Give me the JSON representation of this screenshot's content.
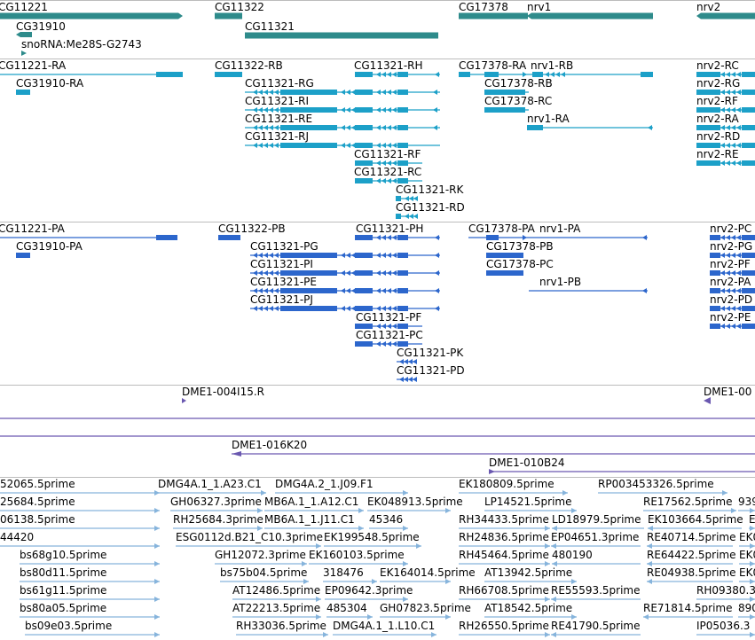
{
  "colors": {
    "gene": "#2e8b8b",
    "transcript": "#1ca0c8",
    "protein": "#2c66cc",
    "bac": "#6a58b0",
    "est": "#86b4dc",
    "divider": "#bcbcbc"
  },
  "tracks": {
    "genes": [
      {
        "label": "CG11221",
        "dir": "-"
      },
      {
        "label": "CG31910",
        "dir": "-"
      },
      {
        "label": "snoRNA:Me28S-G2743",
        "dir": "+"
      },
      {
        "label": "CG11322",
        "dir": "+"
      },
      {
        "label": "CG11321",
        "dir": "-"
      },
      {
        "label": "CG17378",
        "dir": "+"
      },
      {
        "label": "nrv1",
        "dir": "-"
      },
      {
        "label": "nrv2",
        "dir": "-"
      }
    ],
    "transcripts": [
      {
        "label": "CG11221-RA"
      },
      {
        "label": "CG31910-RA"
      },
      {
        "label": "CG11322-RB"
      },
      {
        "label": "CG11321-RG"
      },
      {
        "label": "CG11321-RI"
      },
      {
        "label": "CG11321-RE"
      },
      {
        "label": "CG11321-RJ"
      },
      {
        "label": "CG11321-RH"
      },
      {
        "label": "CG11321-RF"
      },
      {
        "label": "CG11321-RC"
      },
      {
        "label": "CG11321-RK"
      },
      {
        "label": "CG11321-RD"
      },
      {
        "label": "CG17378-RA"
      },
      {
        "label": "CG17378-RB"
      },
      {
        "label": "CG17378-RC"
      },
      {
        "label": "nrv1-RB"
      },
      {
        "label": "nrv1-RA"
      },
      {
        "label": "nrv2-RC"
      },
      {
        "label": "nrv2-RG"
      },
      {
        "label": "nrv2-RF"
      },
      {
        "label": "nrv2-RA"
      },
      {
        "label": "nrv2-RD"
      },
      {
        "label": "nrv2-RE"
      }
    ],
    "proteins": [
      {
        "label": "CG11221-PA"
      },
      {
        "label": "CG31910-PA"
      },
      {
        "label": "CG11322-PB"
      },
      {
        "label": "CG11321-PG"
      },
      {
        "label": "CG11321-PI"
      },
      {
        "label": "CG11321-PE"
      },
      {
        "label": "CG11321-PJ"
      },
      {
        "label": "CG11321-PH"
      },
      {
        "label": "CG11321-PF"
      },
      {
        "label": "CG11321-PC"
      },
      {
        "label": "CG11321-PK"
      },
      {
        "label": "CG11321-PD"
      },
      {
        "label": "CG17378-PA"
      },
      {
        "label": "CG17378-PB"
      },
      {
        "label": "CG17378-PC"
      },
      {
        "label": "nrv1-PA"
      },
      {
        "label": "nrv1-PB"
      },
      {
        "label": "nrv2-PC"
      },
      {
        "label": "nrv2-PG"
      },
      {
        "label": "nrv2-PF"
      },
      {
        "label": "nrv2-PA"
      },
      {
        "label": "nrv2-PD"
      },
      {
        "label": "nrv2-PE"
      }
    ],
    "bacs": [
      {
        "label": "DME1-004I15.R"
      },
      {
        "label": "DME1-00"
      },
      {
        "label": "DME1-016K20"
      },
      {
        "label": "DME1-010B24"
      }
    ],
    "ests": [
      {
        "label": "52065.5prime"
      },
      {
        "label": "25684.5prime"
      },
      {
        "label": "06138.5prime"
      },
      {
        "label": "44420"
      },
      {
        "label": "bs68g10.5prime"
      },
      {
        "label": "bs80d11.5prime"
      },
      {
        "label": "bs61g11.5prime"
      },
      {
        "label": "bs80a05.5prime"
      },
      {
        "label": "bs09e03.5prime"
      },
      {
        "label": "DMG4A.1_1.A23.C1"
      },
      {
        "label": "DMG4A.2_1.J09.F1"
      },
      {
        "label": "GH06327.3prime"
      },
      {
        "label": "MB6A.1_1.A12.C1"
      },
      {
        "label": "EK048913.5prime"
      },
      {
        "label": "RH25684.3prime"
      },
      {
        "label": "MB6A.1_1.J11.C1"
      },
      {
        "label": "45346"
      },
      {
        "label": "ESG0112d.B21_C10.3prime"
      },
      {
        "label": "EK199548.5prime"
      },
      {
        "label": "GH12072.3prime"
      },
      {
        "label": "EK160103.5prime"
      },
      {
        "label": "bs75b04.5prime"
      },
      {
        "label": "318476"
      },
      {
        "label": "EK164014.5prime"
      },
      {
        "label": "AT12486.5prime"
      },
      {
        "label": "EP09642.3prime"
      },
      {
        "label": "AT22213.5prime"
      },
      {
        "label": "485304"
      },
      {
        "label": "GH07823.5prime"
      },
      {
        "label": "RH33036.5prime"
      },
      {
        "label": "DMG4A.1_1.L10.C1"
      },
      {
        "label": "EK180809.5prime"
      },
      {
        "label": "RP003453326.5prime"
      },
      {
        "label": "LP14521.5prime"
      },
      {
        "label": "RE17562.5prime"
      },
      {
        "label": "939"
      },
      {
        "label": "RH34433.5prime"
      },
      {
        "label": "LD18979.5prime"
      },
      {
        "label": "EK103664.5prime"
      },
      {
        "label": "E"
      },
      {
        "label": "RH24836.5prime"
      },
      {
        "label": "EP04651.3prime"
      },
      {
        "label": "RE40714.5prime"
      },
      {
        "label": "EK0"
      },
      {
        "label": "RH45464.5prime"
      },
      {
        "label": "480190"
      },
      {
        "label": "RE64422.5prime"
      },
      {
        "label": "EK0"
      },
      {
        "label": "AT13942.5prime"
      },
      {
        "label": "RE04938.5prime"
      },
      {
        "label": "EK0"
      },
      {
        "label": "RH66708.5prime"
      },
      {
        "label": "RE55593.5prime"
      },
      {
        "label": "RH09380.3"
      },
      {
        "label": "AT18542.5prime"
      },
      {
        "label": "RE71814.5prime"
      },
      {
        "label": "890"
      },
      {
        "label": "RH26550.5prime"
      },
      {
        "label": "RE41790.5prime"
      },
      {
        "label": "IP05036.3"
      }
    ]
  }
}
